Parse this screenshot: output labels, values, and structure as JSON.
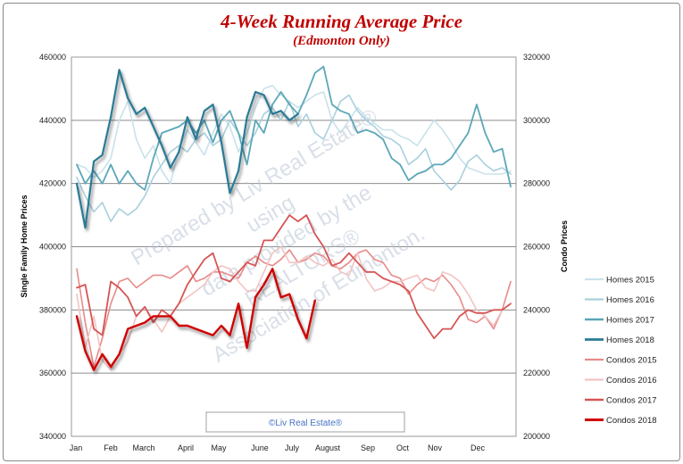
{
  "chart_data": {
    "type": "line",
    "title": "4-Week Running Average Price",
    "subtitle": "(Edmonton Only)",
    "ylabel": "Single Family Home Prices",
    "y2label": "Condo Prices",
    "ylim": [
      340000,
      460000
    ],
    "y2lim": [
      200000,
      320000
    ],
    "yticks": [
      "340000",
      "360000",
      "380000",
      "400000",
      "420000",
      "440000",
      "460000"
    ],
    "y2ticks": [
      "200000",
      "220000",
      "240000",
      "260000",
      "280000",
      "300000",
      "320000"
    ],
    "months": [
      "Jan",
      "Feb",
      "March",
      "April",
      "May",
      "June",
      "July",
      "August",
      "Sep",
      "Oct",
      "Nov",
      "Dec"
    ],
    "week_range": [
      1,
      52
    ],
    "grid": "horizontal",
    "legend_position": "right",
    "watermark": [
      "Prepared by Liv Real Estate®",
      "using",
      "data provided by the",
      "REALTORS®",
      "Association of Edmonton."
    ],
    "copyright": "©Liv Real Estate®",
    "series": [
      {
        "name": "Homes 2015",
        "axis": "left",
        "color": "#c9e2ea",
        "width": 1.6,
        "shadow": false,
        "values": [
          426,
          425,
          422,
          424,
          428,
          440,
          446,
          434,
          428,
          432,
          424,
          420,
          431,
          437,
          433,
          429,
          436,
          442,
          438,
          430,
          436,
          444,
          450,
          451,
          448,
          446,
          444,
          446,
          448,
          449,
          440,
          436,
          440,
          444,
          441,
          439,
          437,
          437,
          435,
          434,
          432,
          436,
          440,
          437,
          433,
          428,
          425,
          424,
          423,
          423,
          423,
          424
        ]
      },
      {
        "name": "Homes 2016",
        "axis": "left",
        "color": "#a8d0dc",
        "width": 1.6,
        "shadow": false,
        "values": [
          422,
          416,
          411,
          414,
          408,
          412,
          410,
          412,
          416,
          422,
          426,
          430,
          432,
          430,
          434,
          436,
          432,
          434,
          440,
          436,
          432,
          436,
          442,
          444,
          440,
          446,
          438,
          442,
          436,
          434,
          440,
          446,
          448,
          443,
          440,
          438,
          435,
          434,
          432,
          426,
          428,
          431,
          424,
          421,
          418,
          421,
          427,
          429,
          426,
          424,
          425,
          423
        ]
      },
      {
        "name": "Homes 2017",
        "axis": "left",
        "color": "#5ba7b8",
        "width": 1.8,
        "shadow": false,
        "values": [
          426,
          420,
          424,
          420,
          426,
          420,
          424,
          420,
          418,
          428,
          436,
          437,
          438,
          440,
          436,
          440,
          433,
          440,
          443,
          436,
          426,
          440,
          436,
          445,
          449,
          445,
          442,
          448,
          455,
          457,
          445,
          443,
          442,
          436,
          437,
          436,
          434,
          428,
          426,
          421,
          423,
          424,
          426,
          426,
          428,
          432,
          436,
          445,
          436,
          430,
          431,
          419
        ]
      },
      {
        "name": "Homes 2018",
        "axis": "left",
        "color": "#2a7a96",
        "width": 2.2,
        "shadow": true,
        "values": [
          420,
          406,
          427,
          429,
          441,
          456,
          447,
          442,
          444,
          438,
          432,
          425,
          430,
          441,
          434,
          443,
          445,
          433,
          417,
          424,
          441,
          449,
          448,
          442,
          443,
          440,
          442
        ]
      },
      {
        "name": "Condos 2015",
        "axis": "right",
        "color": "#e88a8a",
        "width": 1.6,
        "shadow": false,
        "values": [
          253,
          236,
          222,
          231,
          242,
          249,
          250,
          247,
          249,
          251,
          251,
          250,
          252,
          254,
          249,
          250,
          252,
          252,
          251,
          250,
          255,
          257,
          255,
          254,
          256,
          259,
          255,
          256,
          258,
          257,
          254,
          253,
          255,
          258,
          259,
          256,
          255,
          251,
          250,
          245,
          248,
          250,
          249,
          251,
          248,
          244,
          237,
          236,
          238,
          234,
          240,
          249
        ]
      },
      {
        "name": "Condos 2016",
        "axis": "right",
        "color": "#f2c4c4",
        "width": 1.6,
        "shadow": false,
        "values": [
          245,
          228,
          238,
          224,
          221,
          226,
          230,
          238,
          241,
          237,
          233,
          238,
          242,
          244,
          246,
          248,
          252,
          254,
          253,
          249,
          246,
          246,
          252,
          258,
          260,
          255,
          255,
          257,
          255,
          254,
          256,
          252,
          251,
          258,
          250,
          246,
          247,
          249,
          249,
          250,
          251,
          247,
          246,
          252,
          251,
          249,
          245,
          240,
          238,
          235,
          240,
          242
        ]
      },
      {
        "name": "Condos 2017",
        "axis": "right",
        "color": "#d65555",
        "width": 1.8,
        "shadow": false,
        "values": [
          247,
          248,
          234,
          232,
          249,
          247,
          244,
          238,
          241,
          236,
          240,
          238,
          242,
          248,
          252,
          256,
          258,
          250,
          249,
          252,
          255,
          254,
          262,
          262,
          266,
          270,
          268,
          270,
          264,
          260,
          254,
          255,
          258,
          255,
          252,
          252,
          250,
          249,
          248,
          246,
          239,
          235,
          231,
          234,
          234,
          238,
          240,
          239,
          239,
          240,
          240,
          242
        ]
      },
      {
        "name": "Condos 2018",
        "axis": "right",
        "color": "#d00000",
        "width": 2.4,
        "shadow": true,
        "values": [
          238,
          227,
          221,
          226,
          222,
          226,
          234,
          235,
          236,
          238,
          238,
          238,
          235,
          235,
          234,
          233,
          232,
          235,
          232,
          242,
          228,
          244,
          248,
          253,
          244,
          245,
          237,
          231,
          243
        ]
      }
    ]
  }
}
